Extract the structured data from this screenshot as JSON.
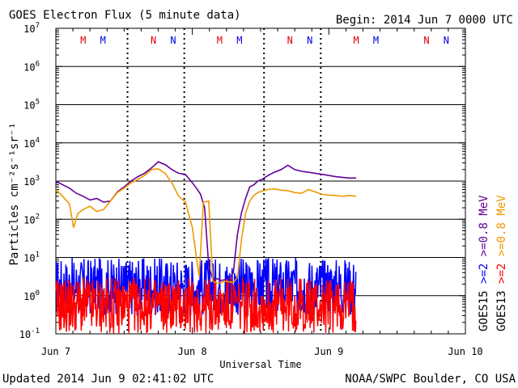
{
  "header": {
    "title": "GOES Electron Flux (5 minute data)",
    "begin": "Begin: 2014 Jun 7 0000 UTC"
  },
  "footer": {
    "updated": "Updated 2014 Jun  9 02:41:02 UTC",
    "credit": "NOAA/SWPC Boulder, CO USA"
  },
  "chart_data": {
    "type": "line",
    "title": "GOES Electron Flux (5 minute data)",
    "xlabel": "Universal Time",
    "ylabel": "Particles cm⁻²s⁻¹sr⁻¹",
    "yscale": "log",
    "ylim": [
      0.1,
      10000000
    ],
    "xlim_days": [
      0,
      3
    ],
    "x_ticks": [
      {
        "day": 0,
        "label": "Jun 7"
      },
      {
        "day": 1,
        "label": "Jun 8"
      },
      {
        "day": 2,
        "label": "Jun 9"
      },
      {
        "day": 3,
        "label": "Jun 10"
      }
    ],
    "y_tick_exponents": [
      -1,
      0,
      1,
      2,
      3,
      4,
      5,
      6,
      7
    ],
    "threshold": 1000,
    "day_markers": [
      0.525,
      1.525
    ],
    "markers": [
      {
        "day": 0.2,
        "label": "M",
        "color": "#dd0000"
      },
      {
        "day": 0.345,
        "label": "M",
        "color": "#0000dd"
      },
      {
        "day": 0.715,
        "label": "N",
        "color": "#dd0000"
      },
      {
        "day": 0.86,
        "label": "N",
        "color": "#0000dd"
      },
      {
        "day": 1.2,
        "label": "M",
        "color": "#dd0000"
      },
      {
        "day": 1.345,
        "label": "M",
        "color": "#0000dd"
      },
      {
        "day": 1.715,
        "label": "N",
        "color": "#dd0000"
      },
      {
        "day": 1.86,
        "label": "N",
        "color": "#0000dd"
      },
      {
        "day": 2.2,
        "label": "M",
        "color": "#dd0000"
      },
      {
        "day": 2.345,
        "label": "M",
        "color": "#0000dd"
      },
      {
        "day": 2.715,
        "label": "N",
        "color": "#dd0000"
      },
      {
        "day": 2.86,
        "label": "N",
        "color": "#0000dd"
      }
    ],
    "legend": [
      {
        "prefix": "GOES15",
        "label": ">=2",
        "color": "#0000ff",
        "label2": ">=0.8 MeV",
        "color2": "#660099"
      },
      {
        "prefix": "GOES13",
        "label": ">=2",
        "color": "#ff0000",
        "label2": ">=0.8 MeV",
        "color2": "#ee9900"
      }
    ],
    "series": [
      {
        "name": "GOES15 >=0.8 MeV",
        "color": "#660099",
        "x": [
          0,
          0.05,
          0.1,
          0.15,
          0.2,
          0.25,
          0.3,
          0.35,
          0.4,
          0.45,
          0.5,
          0.55,
          0.6,
          0.65,
          0.7,
          0.75,
          0.8,
          0.85,
          0.9,
          0.95,
          1.0,
          1.03,
          1.06,
          1.09,
          1.12,
          1.15,
          1.18,
          1.21,
          1.24,
          1.27,
          1.3,
          1.33,
          1.36,
          1.39,
          1.42,
          1.45,
          1.48,
          1.51,
          1.54,
          1.57,
          1.6,
          1.65,
          1.7,
          1.75,
          1.8,
          1.85,
          1.9,
          1.95,
          2.0,
          2.05,
          2.1,
          2.15,
          2.2
        ],
        "values": [
          1000,
          800,
          650,
          480,
          400,
          320,
          350,
          280,
          300,
          520,
          700,
          1000,
          1300,
          1600,
          2200,
          3200,
          2700,
          2000,
          1600,
          1500,
          900,
          650,
          450,
          200,
          6,
          2.6,
          2.8,
          2.5,
          2.6,
          2.8,
          4,
          40,
          150,
          350,
          700,
          800,
          1000,
          1100,
          1300,
          1500,
          1700,
          2000,
          2600,
          2000,
          1800,
          1700,
          1600,
          1500,
          1400,
          1300,
          1250,
          1200,
          1200
        ]
      },
      {
        "name": "GOES13 >=0.8 MeV",
        "color": "#ee9900",
        "x": [
          0,
          0.05,
          0.1,
          0.13,
          0.16,
          0.2,
          0.25,
          0.3,
          0.35,
          0.4,
          0.45,
          0.5,
          0.55,
          0.6,
          0.65,
          0.7,
          0.75,
          0.8,
          0.85,
          0.9,
          0.95,
          1.0,
          1.03,
          1.05,
          1.08,
          1.12,
          1.15,
          1.18,
          1.21,
          1.24,
          1.27,
          1.3,
          1.33,
          1.36,
          1.39,
          1.42,
          1.45,
          1.48,
          1.51,
          1.55,
          1.6,
          1.65,
          1.7,
          1.75,
          1.8,
          1.85,
          1.9,
          1.95,
          2.0,
          2.05,
          2.1,
          2.15,
          2.2
        ],
        "values": [
          600,
          400,
          250,
          60,
          140,
          180,
          220,
          160,
          180,
          300,
          500,
          650,
          900,
          1100,
          1400,
          2000,
          2100,
          1600,
          900,
          400,
          280,
          60,
          10,
          3.2,
          280,
          300,
          2.4,
          2.1,
          2.2,
          2.4,
          2.3,
          2.2,
          3,
          30,
          140,
          300,
          420,
          500,
          550,
          600,
          620,
          580,
          560,
          500,
          480,
          600,
          520,
          450,
          430,
          420,
          400,
          420,
          400
        ]
      },
      {
        "name": "GOES15 >=2 MeV",
        "color": "#0000ff",
        "x_range_days": [
          0,
          2.2
        ],
        "range": [
          0.3,
          10
        ],
        "note": "noisy data near background, fluctuating between about 0.3 and 9"
      },
      {
        "name": "GOES13 >=2 MeV",
        "color": "#ff0000",
        "x_range_days": [
          0,
          2.2
        ],
        "range": [
          0.1,
          3
        ],
        "note": "noisy data near background, fluctuating between about 0.1 and 3"
      }
    ]
  }
}
